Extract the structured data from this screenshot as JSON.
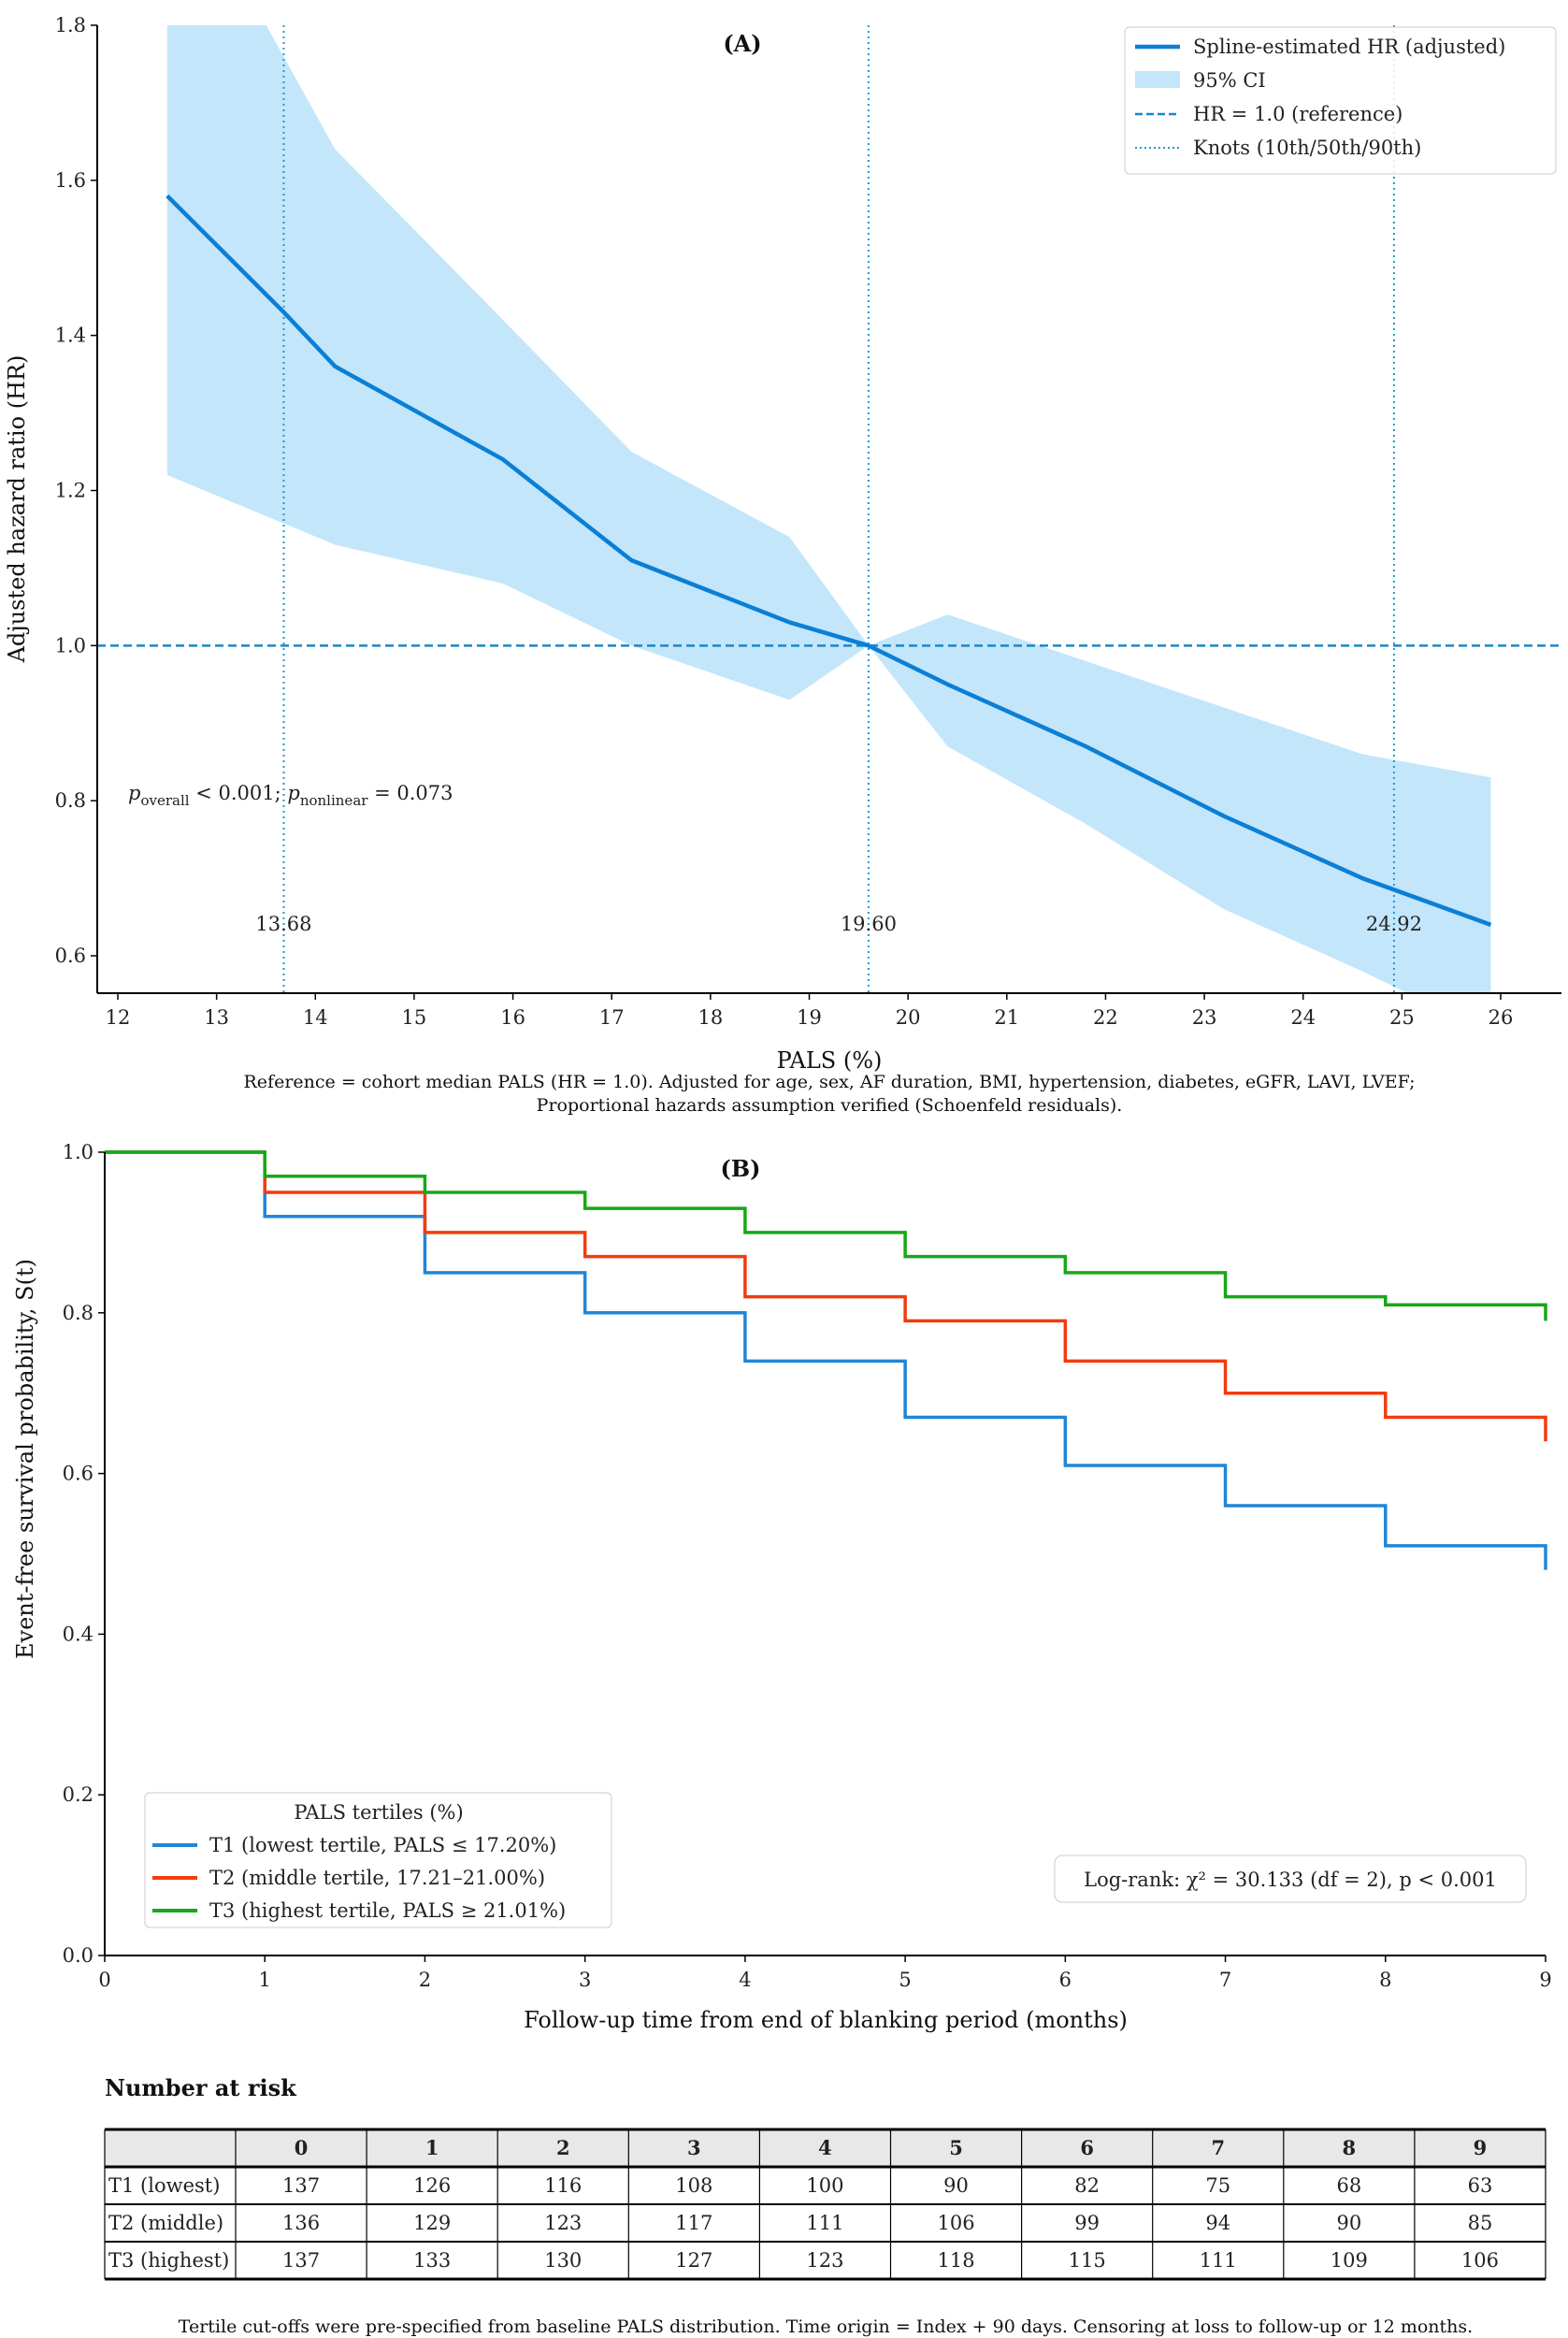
{
  "chart_data": [
    {
      "type": "line",
      "panel_label": "(A)",
      "xlabel": "PALS (%)",
      "ylabel": "Adjusted hazard ratio (HR)",
      "xlim": [
        11.8,
        26.6
      ],
      "ylim": [
        0.54,
        1.8
      ],
      "xticks": [
        12,
        13,
        14,
        15,
        16,
        17,
        18,
        19,
        20,
        21,
        22,
        23,
        24,
        25,
        26
      ],
      "yticks": [
        0.6,
        0.8,
        1.0,
        1.2,
        1.4,
        1.6,
        1.8
      ],
      "colors": {
        "line": "#0a7fd6",
        "ci": "#c3e6fb",
        "ref": "#1a88c9",
        "knot": "#1a9bd7"
      },
      "series": [
        {
          "name": "Spline-estimated HR (adjusted)",
          "x": [
            12.5,
            13.68,
            14.2,
            15.9,
            17.2,
            18.8,
            19.6,
            20.4,
            21.8,
            23.2,
            24.6,
            25.9
          ],
          "y": [
            1.58,
            1.43,
            1.36,
            1.24,
            1.11,
            1.03,
            1.0,
            0.95,
            0.87,
            0.78,
            0.7,
            0.64
          ]
        },
        {
          "name": "95% CI",
          "x": [
            12.5,
            14.2,
            15.9,
            17.2,
            18.8,
            19.6,
            20.4,
            21.8,
            23.2,
            24.6,
            25.9
          ],
          "upper": [
            2.03,
            1.64,
            1.42,
            1.25,
            1.14,
            1.0,
            1.04,
            0.98,
            0.92,
            0.86,
            0.83
          ],
          "lower": [
            1.22,
            1.13,
            1.08,
            1.0,
            0.93,
            1.0,
            0.87,
            0.77,
            0.66,
            0.58,
            0.5
          ]
        }
      ],
      "reference_line": {
        "name": "HR = 1.0 (reference)",
        "y": 1.0
      },
      "knots": {
        "name": "Knots (10th/50th/90th)",
        "x": [
          13.68,
          19.6,
          24.92
        ],
        "labels": [
          "13.68",
          "19.60",
          "24.92"
        ]
      },
      "annotation": {
        "p_sym": "p",
        "sub1": "overall",
        "text1": " < 0.001;  ",
        "sub2": "nonlinear",
        "text2": " = 0.073"
      },
      "caption": [
        "Reference = cohort median PALS (HR = 1.0). Adjusted for age, sex, AF duration, BMI, hypertension, diabetes, eGFR, LAVI, LVEF;",
        "Proportional hazards assumption verified (Schoenfeld residuals)."
      ],
      "legend_placement": "top-right"
    },
    {
      "type": "line",
      "subtype": "kaplan-meier-step",
      "panel_label": "(B)",
      "xlabel": "Follow-up time from end of blanking period (months)",
      "ylabel": "Event-free survival probability, S(t)",
      "xlim": [
        0,
        9
      ],
      "ylim": [
        0,
        1.0
      ],
      "xticks": [
        0,
        1,
        2,
        3,
        4,
        5,
        6,
        7,
        8,
        9
      ],
      "yticks": [
        0.0,
        0.2,
        0.4,
        0.6,
        0.8,
        1.0
      ],
      "legend_title": "PALS tertiles (%)",
      "legend_placement": "lower-left",
      "series": [
        {
          "name": "T1 (lowest tertile, PALS ≤ 17.20%)",
          "color": "#1f86d8",
          "x": [
            0,
            1,
            2,
            3,
            4,
            5,
            6,
            7,
            8,
            9
          ],
          "y": [
            1.0,
            0.92,
            0.85,
            0.8,
            0.74,
            0.67,
            0.61,
            0.56,
            0.51,
            0.48
          ]
        },
        {
          "name": "T2 (middle tertile, 17.21–21.00%)",
          "color": "#f23c0f",
          "x": [
            0,
            1,
            2,
            3,
            4,
            5,
            6,
            7,
            8,
            9
          ],
          "y": [
            1.0,
            0.95,
            0.9,
            0.87,
            0.82,
            0.79,
            0.74,
            0.7,
            0.67,
            0.64
          ]
        },
        {
          "name": "T3 (highest tertile, PALS ≥ 21.01%)",
          "color": "#17a817",
          "x": [
            0,
            1,
            2,
            3,
            4,
            5,
            6,
            7,
            8,
            9
          ],
          "y": [
            1.0,
            0.97,
            0.95,
            0.93,
            0.9,
            0.87,
            0.85,
            0.82,
            0.81,
            0.79
          ]
        }
      ],
      "logrank": "Log-rank: χ² = 30.133 (df = 2), p < 0.001"
    },
    {
      "type": "table",
      "title": "Number at risk",
      "columns": [
        "",
        "0",
        "1",
        "2",
        "3",
        "4",
        "5",
        "6",
        "7",
        "8",
        "9"
      ],
      "rows": [
        [
          "T1 (lowest)",
          "137",
          "126",
          "116",
          "108",
          "100",
          "90",
          "82",
          "75",
          "68",
          "63"
        ],
        [
          "T2 (middle)",
          "136",
          "129",
          "123",
          "117",
          "111",
          "106",
          "99",
          "94",
          "90",
          "85"
        ],
        [
          "T3 (highest)",
          "137",
          "133",
          "130",
          "127",
          "123",
          "118",
          "115",
          "111",
          "109",
          "106"
        ]
      ],
      "footnote": "Tertile cut-offs were pre-specified from baseline PALS distribution. Time origin = Index + 90 days. Censoring at loss to follow-up or 12 months."
    }
  ]
}
